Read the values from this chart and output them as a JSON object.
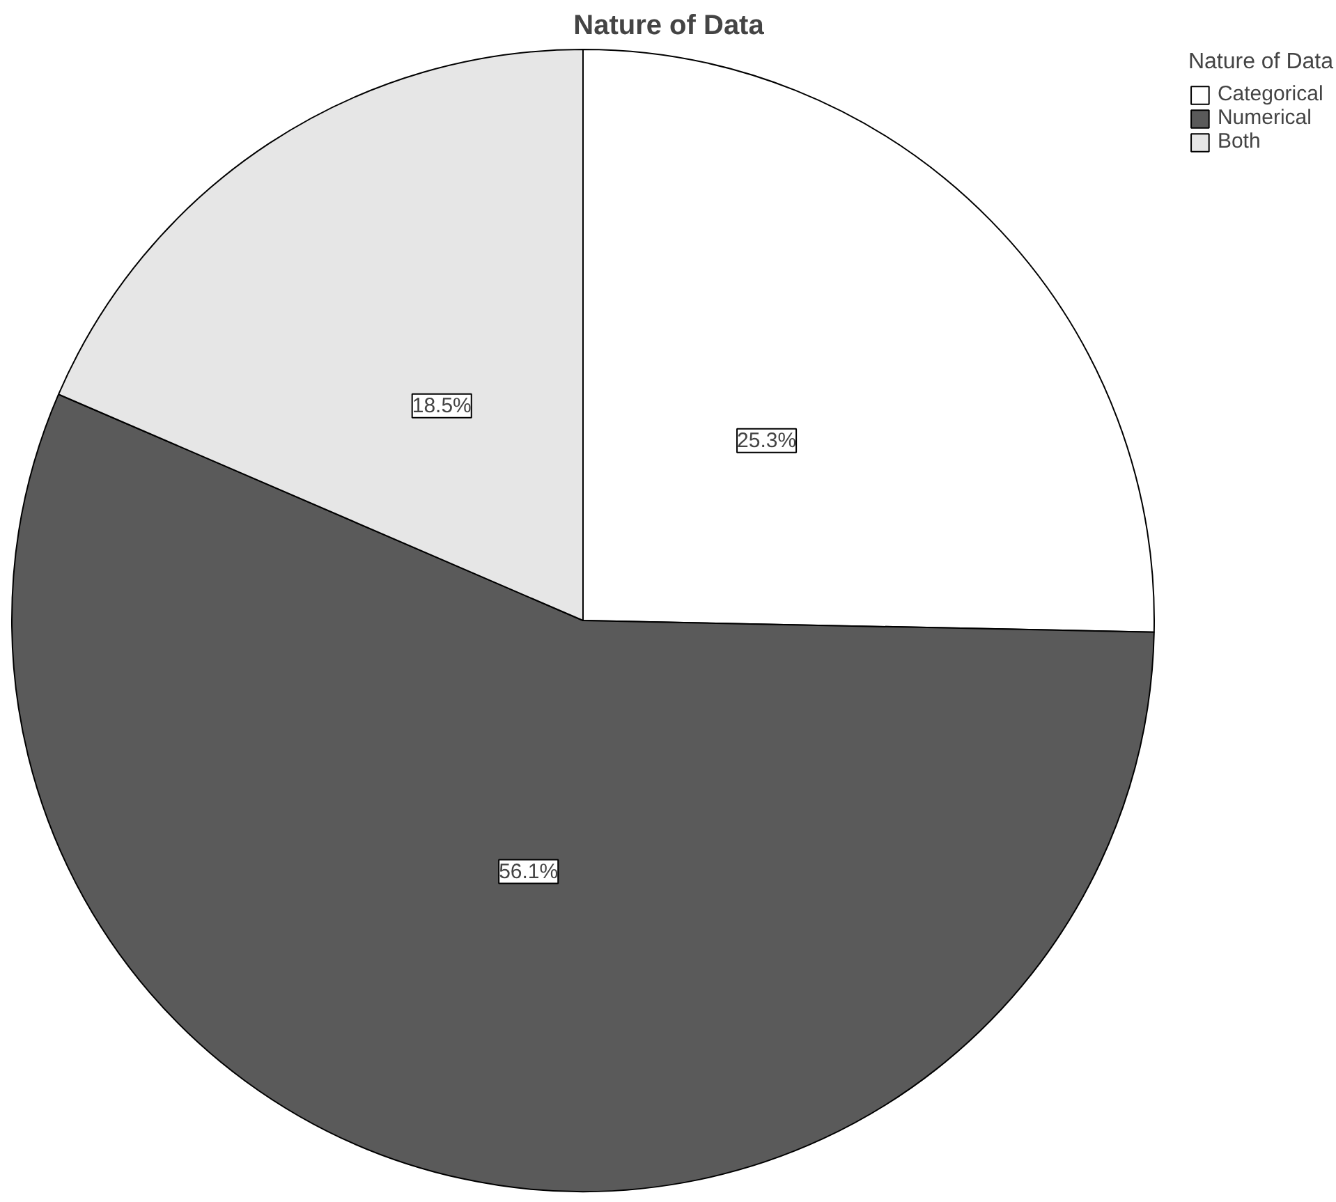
{
  "chart_data": {
    "type": "pie",
    "title": "Nature of Data",
    "legend_title": "Nature of Data",
    "categories": [
      "Categorical",
      "Numerical",
      "Both"
    ],
    "values": [
      25.3,
      56.1,
      18.5
    ],
    "colors": [
      "#ffffff",
      "#5a5a5a",
      "#e6e6e6"
    ],
    "value_labels": [
      "25.3%",
      "56.1%",
      "18.5%"
    ],
    "legend": "top right"
  }
}
